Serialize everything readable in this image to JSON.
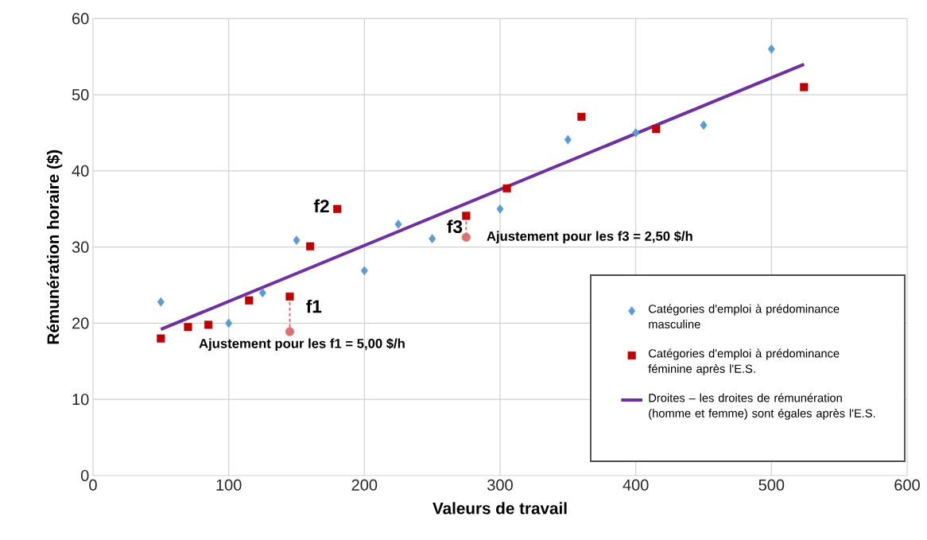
{
  "chart_data": {
    "type": "scatter",
    "xlabel": "Valeurs de travail",
    "ylabel": "Rémunération horaire ($)",
    "xlim": [
      0,
      600
    ],
    "ylim": [
      0,
      60
    ],
    "xticks": [
      0,
      100,
      200,
      300,
      400,
      500,
      600
    ],
    "yticks": [
      0,
      10,
      20,
      30,
      40,
      50,
      60
    ],
    "grid": true,
    "legend": "bottom right",
    "series": [
      {
        "name": "Catégories d'emploi à prédominance masculine",
        "type": "scatter",
        "marker": "diamond",
        "color": "#5b9bd5",
        "x": [
          50,
          100,
          125,
          150,
          200,
          225,
          250,
          300,
          350,
          400,
          450,
          500
        ],
        "values": [
          22.8,
          20,
          24,
          30.9,
          26.9,
          33,
          31.1,
          35,
          44.1,
          45,
          46,
          56
        ]
      },
      {
        "name": "Catégories d'emploi à prédominance féminine après l'E.S.",
        "type": "scatter",
        "marker": "square",
        "color": "#c00000",
        "x": [
          50,
          70,
          85,
          115,
          145,
          160,
          180,
          275,
          305,
          360,
          415,
          524
        ],
        "values": [
          18,
          19.5,
          19.8,
          23,
          23.5,
          30.1,
          35,
          34.1,
          37.7,
          47.1,
          45.5,
          51
        ]
      },
      {
        "name": "Droites – les droites de rémunération (homme et femme) sont égales après l'E.S.",
        "type": "line",
        "marker": "none",
        "line_style": "solid",
        "color": "#7030a0",
        "x": [
          50,
          524
        ],
        "values": [
          19.2,
          54
        ]
      },
      {
        "type": "line",
        "marker": "none",
        "line_style": "dashed",
        "color": "#e07070",
        "x": [
          145,
          145
        ],
        "values": [
          23.5,
          18.9
        ]
      },
      {
        "type": "line",
        "marker": "none",
        "line_style": "dashed",
        "color": "#e07070",
        "x": [
          275,
          275
        ],
        "values": [
          34.1,
          31.3
        ]
      },
      {
        "type": "scatter",
        "marker": "circle",
        "color": "#e07070",
        "x": [
          145,
          275
        ],
        "values": [
          18.9,
          31.3
        ]
      }
    ],
    "annotations": [
      {
        "text": "f1",
        "x": 145,
        "y": 23.5
      },
      {
        "text": "f2",
        "x": 180,
        "y": 35
      },
      {
        "text": "f3",
        "x": 275,
        "y": 34.1
      },
      {
        "text": "Ajustement pour les f1 = 5,00 $/h",
        "x": 145,
        "y": 18.9
      },
      {
        "text": "Ajustement pour les f3 = 2,50 $/h",
        "x": 275,
        "y": 31.3
      }
    ]
  }
}
